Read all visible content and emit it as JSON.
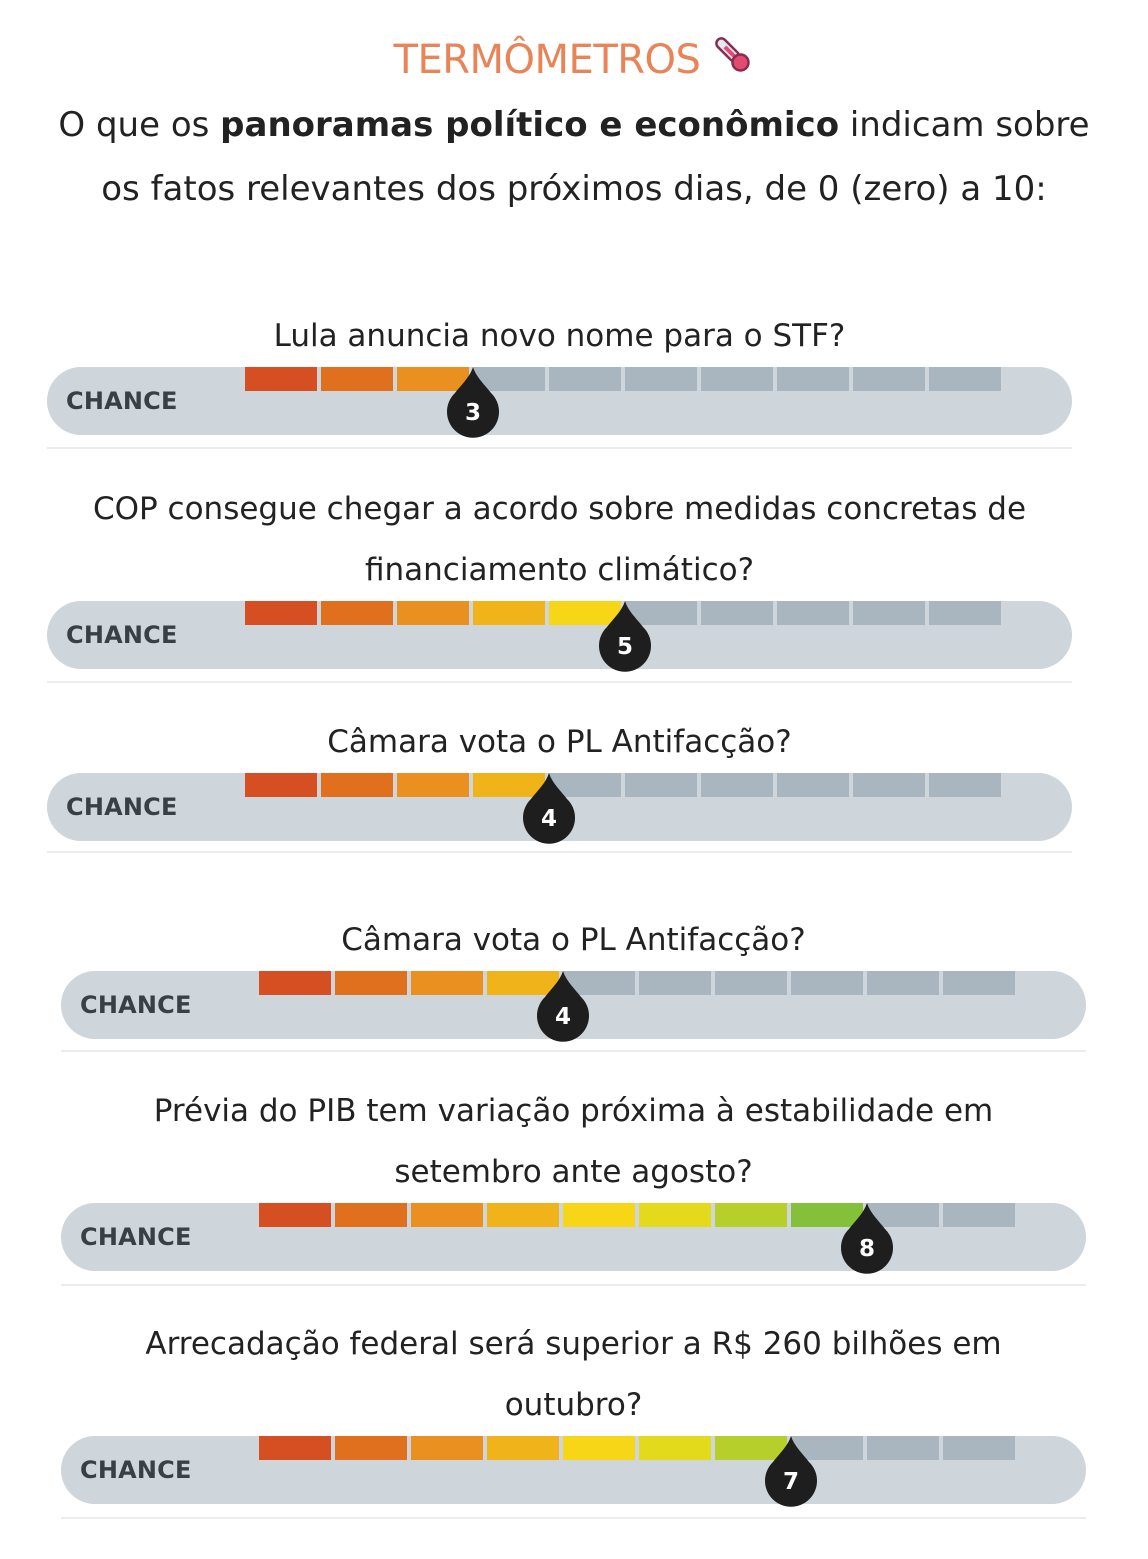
{
  "header": {
    "title": "TERMÔMETROS",
    "title_icon": "thermometer-icon",
    "subtitle_before": "O que os ",
    "subtitle_bold": "panoramas político e econômico",
    "subtitle_after": " indicam sobre os fatos relevantes dos próximos dias, de 0 (zero) a 10:"
  },
  "scale": {
    "max": 10,
    "segment_colors": [
      "#d64f22",
      "#e0701d",
      "#ea9020",
      "#f0b31a",
      "#f7d617",
      "#e2da1b",
      "#b7cf2b",
      "#85c03a",
      "#aab6bf",
      "#aab6bf"
    ],
    "empty_color": "#aab6bf",
    "pin_color": "#1e1e1e"
  },
  "items": [
    {
      "question": "Lula anuncia novo nome para o STF?",
      "chance_label": "CHANCE",
      "value": 3,
      "value_label": "3"
    },
    {
      "question": "COP consegue chegar a acordo sobre medidas concretas de financiamento climático?",
      "chance_label": "CHANCE",
      "value": 5,
      "value_label": "5"
    },
    {
      "question": "Câmara vota o PL Antifacção?",
      "chance_label": "CHANCE",
      "value": 4,
      "value_label": "4"
    },
    {
      "question": "Câmara vota o PL Antifacção?",
      "chance_label": "CHANCE",
      "value": 4,
      "value_label": "4"
    },
    {
      "question": "Prévia do PIB tem variação próxima à estabilidade em setembro ante agosto?",
      "chance_label": "CHANCE",
      "value": 8,
      "value_label": "8"
    },
    {
      "question": "Arrecadação federal será superior a R$ 260 bilhões em outubro?",
      "chance_label": "CHANCE",
      "value": 7,
      "value_label": "7"
    }
  ]
}
